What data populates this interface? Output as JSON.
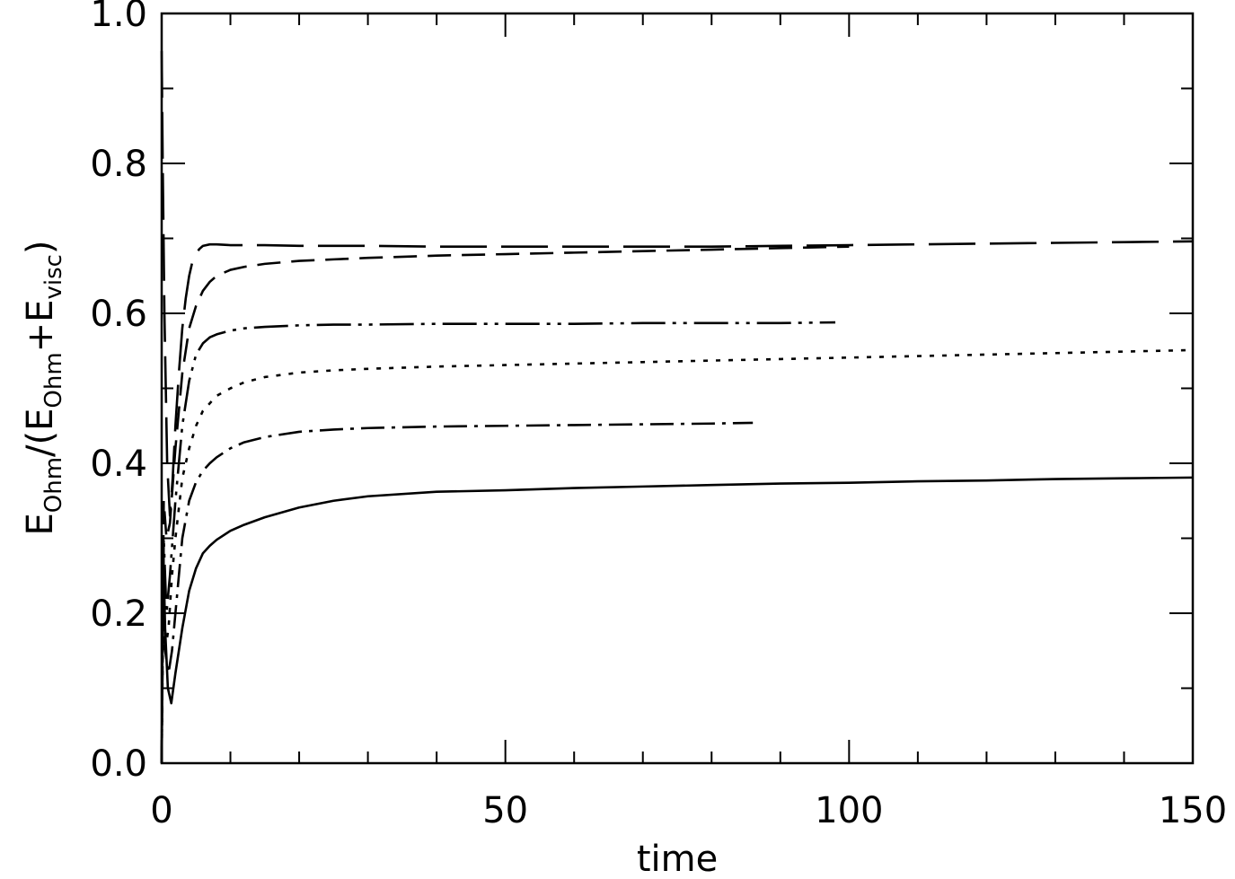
{
  "chart_data": {
    "type": "line",
    "xlabel": "time",
    "ylabel": {
      "base": "E",
      "numerator_sub": "Ohm",
      "slash_open": "/(",
      "denominator_sub1": "Ohm",
      "plus": "+",
      "denominator_sub2": "visc",
      "close": ")"
    },
    "xlim": [
      0,
      150
    ],
    "ylim": [
      0,
      1
    ],
    "x_major_ticks": [
      0,
      50,
      100,
      150
    ],
    "x_tick_labels": [
      "0",
      "50",
      "100",
      "150"
    ],
    "x_minor_step": 10,
    "y_major_ticks": [
      0,
      0.2,
      0.4,
      0.6,
      0.8,
      1.0
    ],
    "y_tick_labels": [
      "0.0",
      "0.2",
      "0.4",
      "0.6",
      "0.8",
      "1.0"
    ],
    "y_minor_step": 0.1,
    "grid": false,
    "series": [
      {
        "style": "solid",
        "x": [
          0,
          0.2,
          0.5,
          0.9,
          1.4,
          2,
          3,
          4,
          5,
          6,
          7,
          8,
          10,
          12,
          15,
          20,
          25,
          30,
          40,
          50,
          60,
          70,
          80,
          90,
          100,
          110,
          120,
          130,
          140,
          150
        ],
        "y": [
          0.0,
          0.3,
          0.18,
          0.1,
          0.08,
          0.12,
          0.18,
          0.23,
          0.26,
          0.28,
          0.29,
          0.298,
          0.31,
          0.318,
          0.328,
          0.341,
          0.35,
          0.356,
          0.362,
          0.364,
          0.367,
          0.369,
          0.371,
          0.373,
          0.374,
          0.376,
          0.377,
          0.379,
          0.38,
          0.381
        ]
      },
      {
        "style": "dash-dot",
        "x": [
          0,
          0.2,
          0.5,
          1,
          1.5,
          2,
          3,
          4,
          5,
          6,
          7,
          8,
          10,
          12,
          15,
          20,
          25,
          30,
          40,
          50,
          60,
          70,
          80,
          86
        ],
        "y": [
          0.0,
          0.25,
          0.15,
          0.12,
          0.15,
          0.2,
          0.3,
          0.35,
          0.375,
          0.39,
          0.4,
          0.408,
          0.42,
          0.428,
          0.435,
          0.442,
          0.445,
          0.447,
          0.449,
          0.45,
          0.451,
          0.452,
          0.453,
          0.454
        ]
      },
      {
        "style": "dotted",
        "x": [
          0,
          0.2,
          0.5,
          1,
          1.5,
          2,
          3,
          4,
          5,
          6,
          8,
          10,
          12,
          15,
          20,
          25,
          30,
          40,
          50,
          60,
          70,
          80,
          90,
          100,
          110,
          120,
          130,
          140,
          150
        ],
        "y": [
          0.0,
          0.2,
          0.15,
          0.18,
          0.25,
          0.3,
          0.38,
          0.42,
          0.45,
          0.47,
          0.49,
          0.5,
          0.508,
          0.515,
          0.521,
          0.524,
          0.526,
          0.529,
          0.531,
          0.533,
          0.535,
          0.537,
          0.539,
          0.541,
          0.543,
          0.545,
          0.547,
          0.549,
          0.551
        ]
      },
      {
        "style": "dash-dot-dot",
        "x": [
          0,
          0.3,
          0.7,
          1.2,
          2,
          3,
          4,
          5,
          6,
          7,
          8,
          10,
          12,
          15,
          20,
          25,
          30,
          40,
          50,
          60,
          70,
          80,
          90,
          98
        ],
        "y": [
          0.0,
          0.3,
          0.2,
          0.25,
          0.35,
          0.45,
          0.51,
          0.545,
          0.56,
          0.568,
          0.572,
          0.577,
          0.58,
          0.582,
          0.584,
          0.585,
          0.585,
          0.586,
          0.586,
          0.586,
          0.587,
          0.587,
          0.587,
          0.588
        ]
      },
      {
        "style": "dashed",
        "x": [
          0,
          0.3,
          0.7,
          1.2,
          2,
          3,
          4,
          5,
          6,
          7,
          8,
          10,
          12,
          15,
          20,
          25,
          30,
          40,
          50,
          60,
          70,
          80,
          90,
          100
        ],
        "y": [
          0.0,
          0.35,
          0.3,
          0.32,
          0.42,
          0.52,
          0.58,
          0.61,
          0.63,
          0.642,
          0.65,
          0.658,
          0.662,
          0.666,
          0.67,
          0.672,
          0.674,
          0.677,
          0.679,
          0.681,
          0.683,
          0.685,
          0.687,
          0.689
        ]
      },
      {
        "style": "long-dash",
        "x": [
          0,
          0.15,
          0.4,
          0.8,
          1.2,
          1.6,
          2,
          2.5,
          3,
          3.5,
          4,
          4.5,
          5,
          5.5,
          6,
          7,
          8,
          10,
          15,
          20,
          30,
          40,
          50,
          60,
          70,
          80,
          90,
          100,
          110,
          120,
          130,
          140,
          150
        ],
        "y": [
          0.95,
          0.8,
          0.6,
          0.4,
          0.33,
          0.38,
          0.45,
          0.52,
          0.58,
          0.62,
          0.65,
          0.67,
          0.68,
          0.686,
          0.69,
          0.692,
          0.692,
          0.691,
          0.691,
          0.69,
          0.69,
          0.689,
          0.689,
          0.689,
          0.689,
          0.689,
          0.69,
          0.691,
          0.692,
          0.693,
          0.694,
          0.695,
          0.696
        ]
      }
    ]
  }
}
